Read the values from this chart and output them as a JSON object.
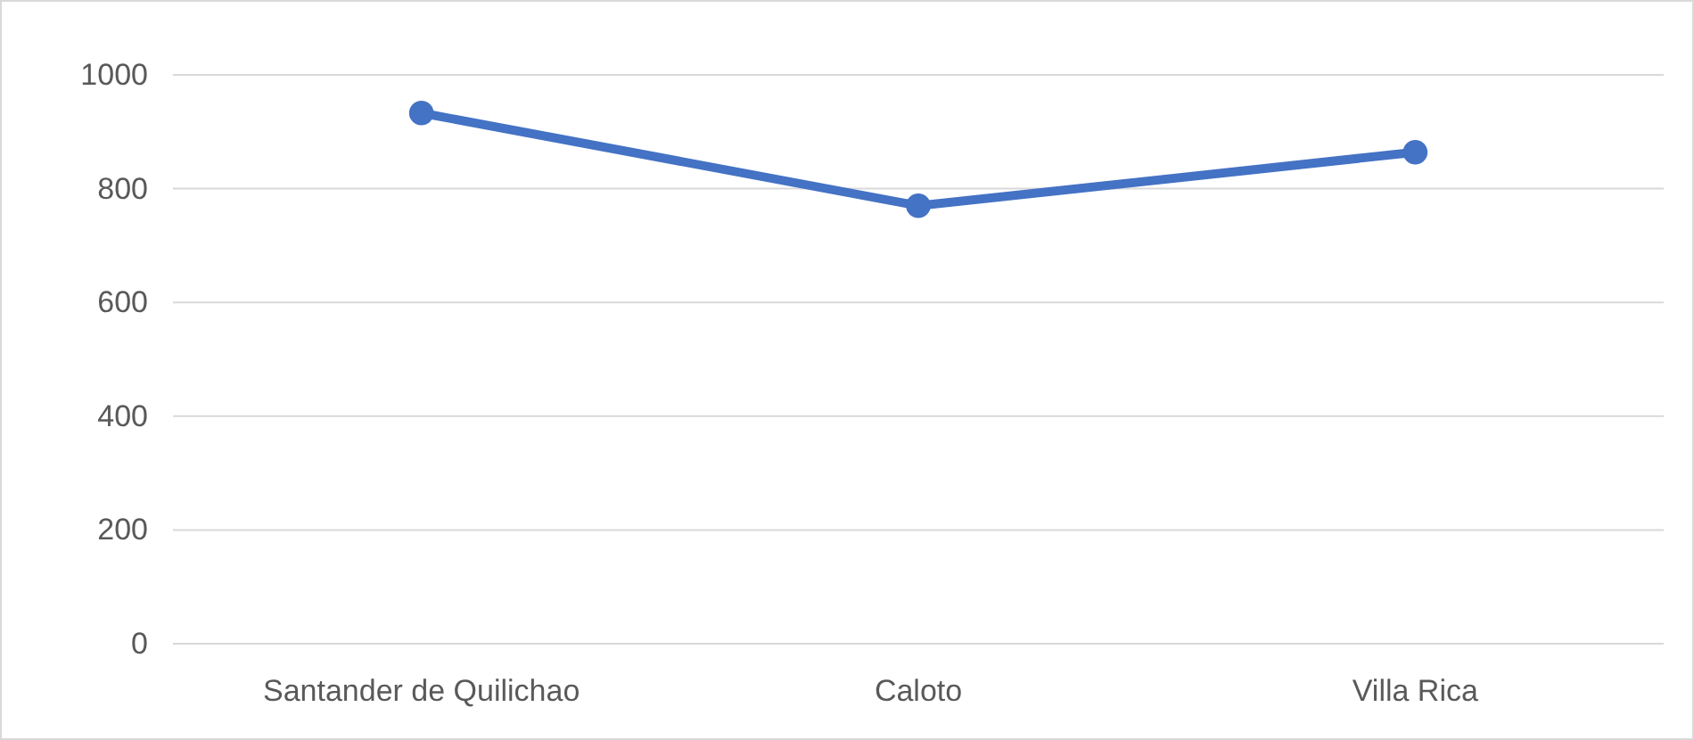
{
  "chart_data": {
    "type": "line",
    "categories": [
      "Santander de Quilichao",
      "Caloto",
      "Villa Rica"
    ],
    "series": [
      {
        "color": "#4472c4",
        "values": [
          933,
          770,
          864
        ]
      }
    ],
    "ylim": [
      0,
      1000
    ],
    "yticks": [
      0,
      200,
      400,
      600,
      800,
      1000
    ],
    "grid": "y",
    "marker": "circle",
    "line_style": "solid"
  }
}
